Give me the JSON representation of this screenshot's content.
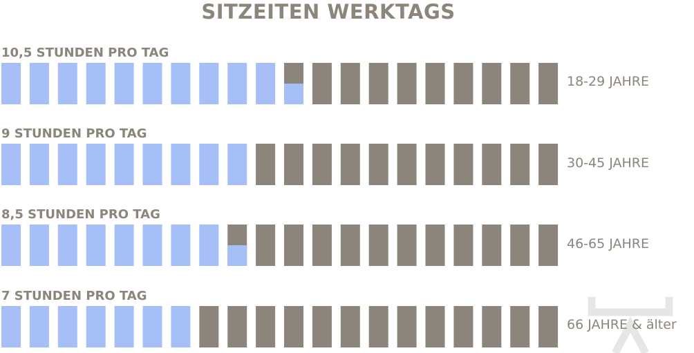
{
  "colors": {
    "sitting": "#a6bff7",
    "rest": "#8b857b",
    "text": "#8b857b"
  },
  "chart_data": {
    "type": "bar",
    "title": "SITZEITEN WERKTAGS",
    "units_per_row": 20,
    "unit": "hours",
    "rows": [
      {
        "label": "10,5 STUNDEN PRO TAG",
        "age_group": "18-29 JAHRE",
        "value": 10.5
      },
      {
        "label": "9 STUNDEN PRO TAG",
        "age_group": "30-45 JAHRE",
        "value": 9
      },
      {
        "label": "8,5 STUNDEN PRO TAG",
        "age_group": "46-65 JAHRE",
        "value": 8.5
      },
      {
        "label": "7 STUNDEN PRO TAG",
        "age_group": "66 JAHRE & älter",
        "value": 7
      }
    ]
  }
}
